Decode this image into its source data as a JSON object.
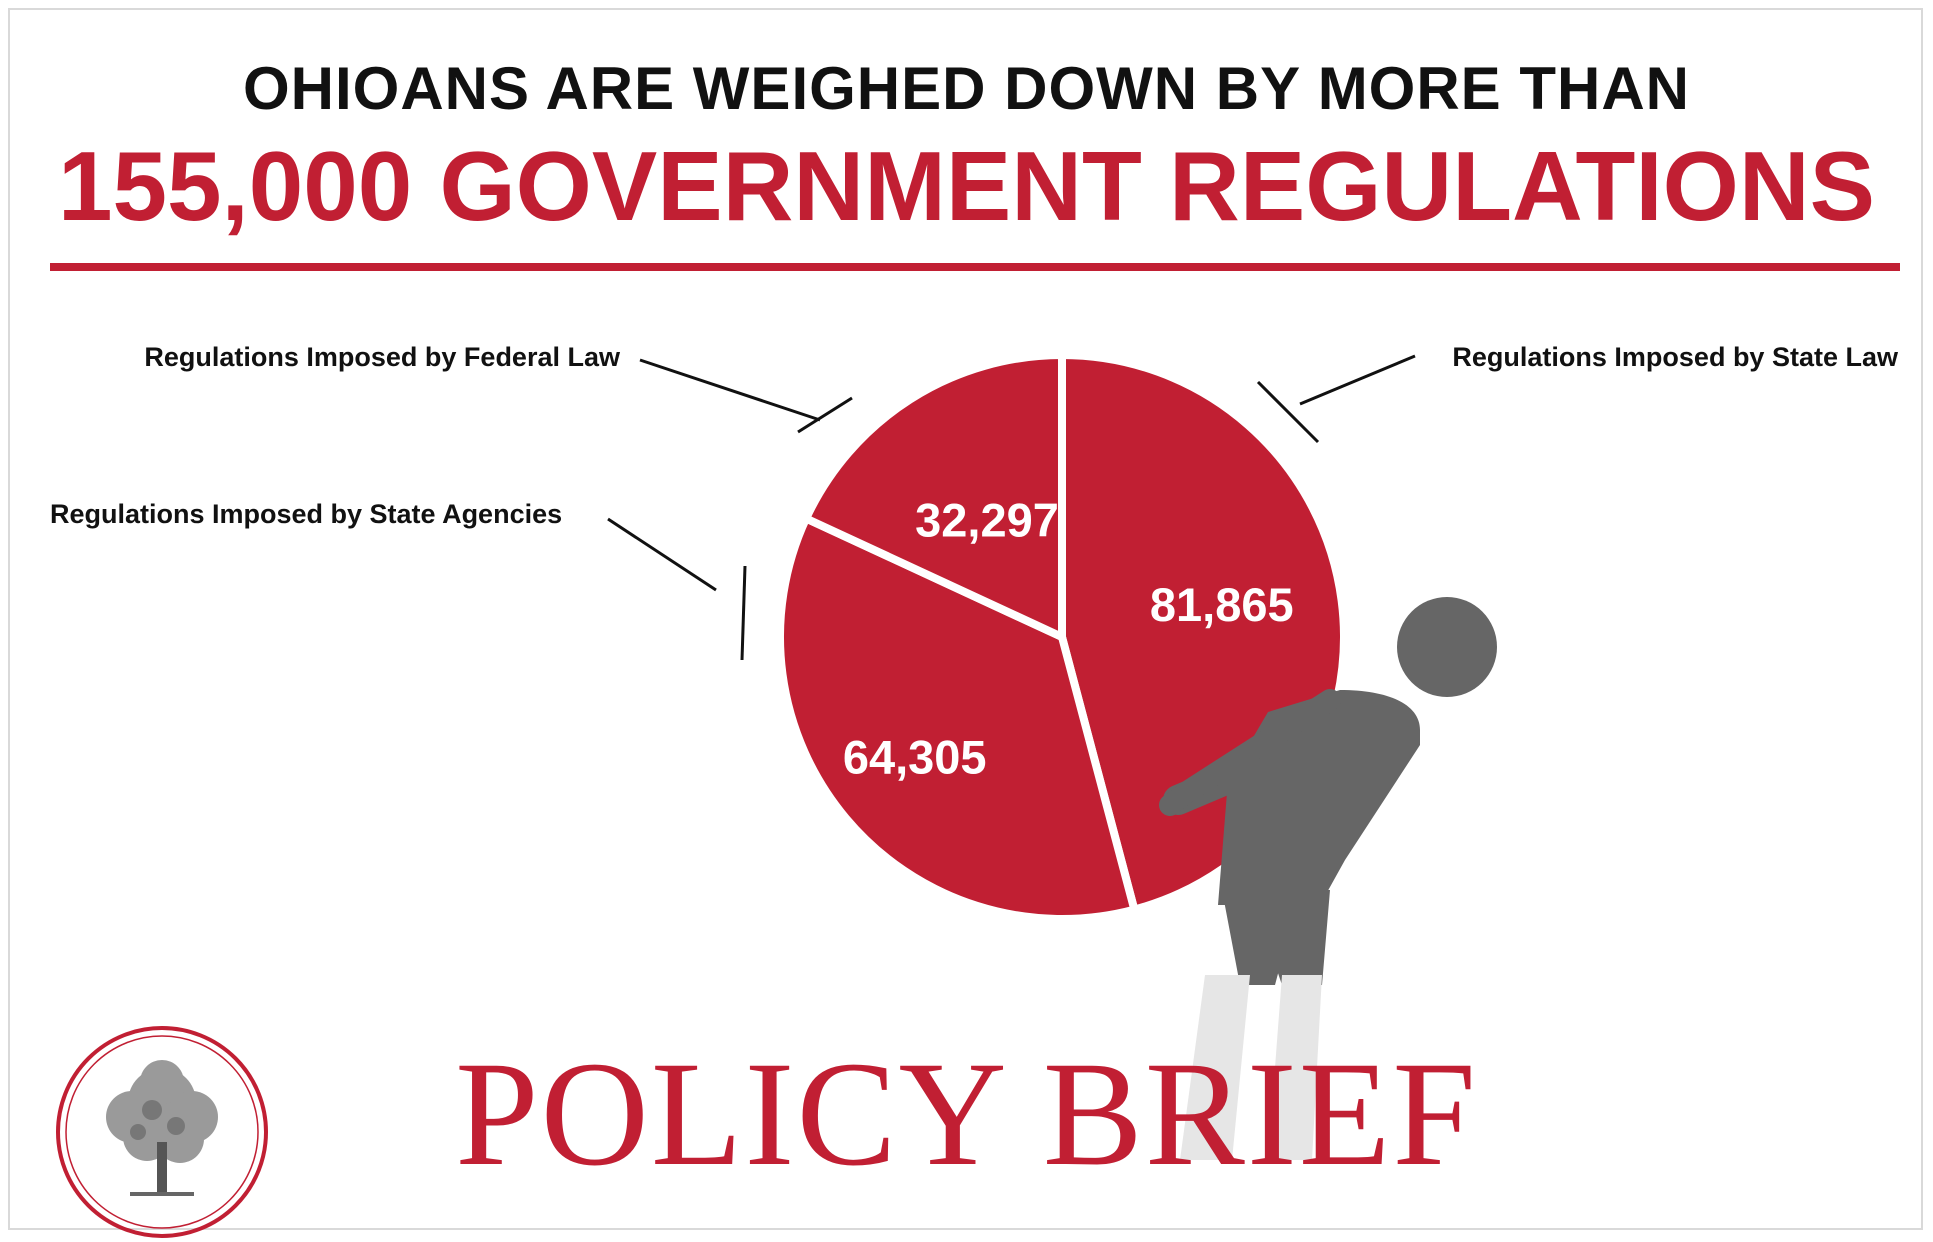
{
  "header": {
    "line1": "OHIOANS ARE WEIGHED DOWN BY MORE THAN",
    "line2": "155,000 GOVERNMENT REGULATIONS"
  },
  "colors": {
    "accent": "#c11f33",
    "figure": "#666666",
    "figure_light": "#e6e6e6",
    "text": "#111111"
  },
  "chart_data": {
    "type": "pie",
    "title": "",
    "slices": [
      {
        "label": "Regulations Imposed by State Law",
        "value": 81865,
        "display": "81,865"
      },
      {
        "label": "Regulations Imposed by State Agencies",
        "value": 64305,
        "display": "64,305"
      },
      {
        "label": "Regulations Imposed by Federal Law",
        "value": 32297,
        "display": "32,297"
      }
    ],
    "start": "12 o'clock",
    "direction": "clockwise"
  },
  "footer": {
    "brand": "POLICY BRIEF",
    "logo_icon": "tree-seal-icon",
    "figure_icon": "burdened-person-icon"
  }
}
